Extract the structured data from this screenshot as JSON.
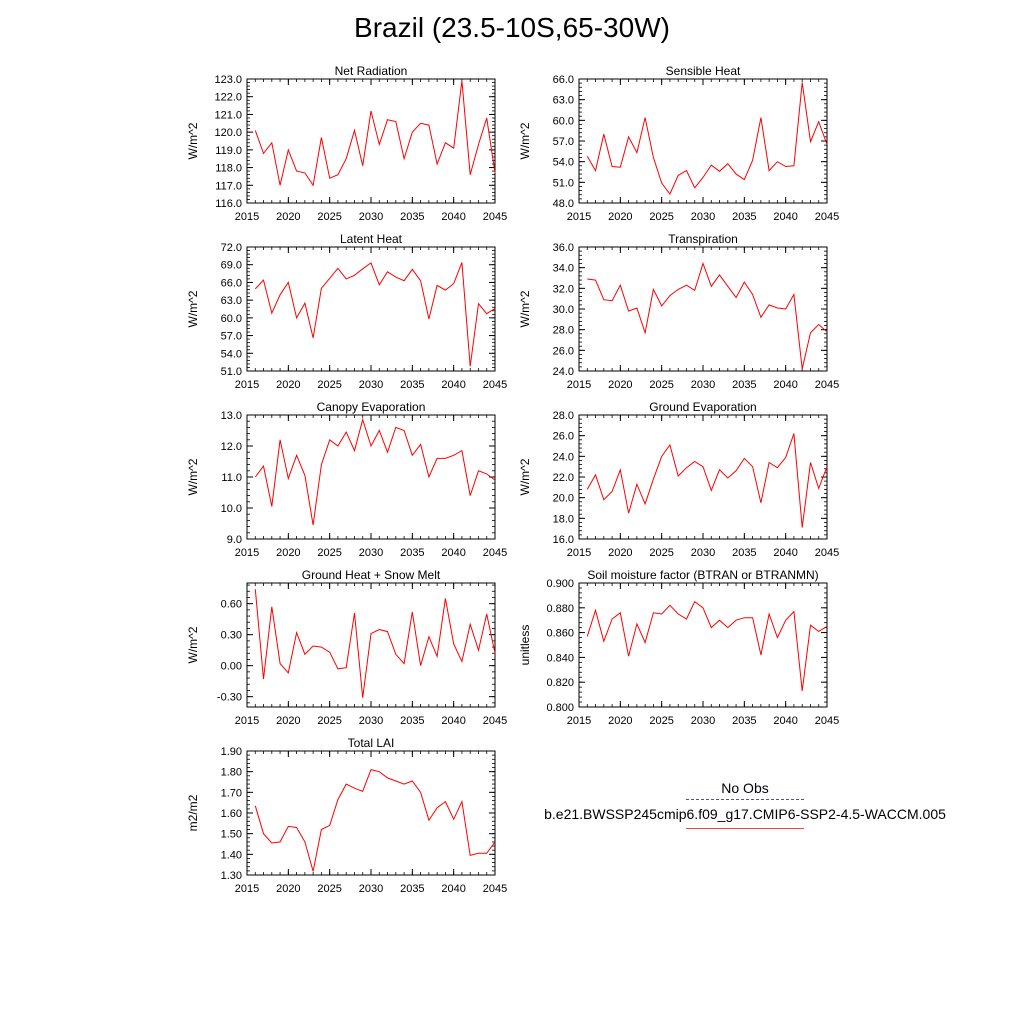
{
  "title": "Brazil (23.5-10S,65-30W)",
  "legend": {
    "obs_label": "No Obs",
    "case_label": "b.e21.BWSSP245cmip6.f09_g17.CMIP6-SSP2-4.5-WACCM.005",
    "obs_color": "#5050a0",
    "case_color": "#ff0000"
  },
  "chart_data": [
    {
      "type": "line",
      "title": "Net Radiation",
      "ylabel": "W/m^2",
      "xlim": [
        2015,
        2045
      ],
      "ylim": [
        116.0,
        123.0
      ],
      "xticks": [
        2015,
        2020,
        2025,
        2030,
        2035,
        2040,
        2045
      ],
      "yticks": [
        "116.0",
        "117.0",
        "118.0",
        "119.0",
        "120.0",
        "121.0",
        "122.0",
        "123.0"
      ],
      "x": [
        2016,
        2017,
        2018,
        2019,
        2020,
        2021,
        2022,
        2023,
        2024,
        2025,
        2026,
        2027,
        2028,
        2029,
        2030,
        2031,
        2032,
        2033,
        2034,
        2035,
        2036,
        2037,
        2038,
        2039,
        2040,
        2041,
        2042,
        2043,
        2044,
        2045
      ],
      "series": [
        {
          "values": [
            120.1,
            118.8,
            119.4,
            117.0,
            119.0,
            117.8,
            117.7,
            117.0,
            119.7,
            117.4,
            117.6,
            118.5,
            120.1,
            118.1,
            121.2,
            119.3,
            120.7,
            120.6,
            118.5,
            120.0,
            120.5,
            120.4,
            118.2,
            119.4,
            119.1,
            122.9,
            117.6,
            119.3,
            120.8,
            117.7
          ]
        }
      ]
    },
    {
      "type": "line",
      "title": "Sensible Heat",
      "ylabel": "W/m^2",
      "xlim": [
        2015,
        2045
      ],
      "ylim": [
        48.0,
        66.0
      ],
      "xticks": [
        2015,
        2020,
        2025,
        2030,
        2035,
        2040,
        2045
      ],
      "yticks": [
        "48.0",
        "51.0",
        "54.0",
        "57.0",
        "60.0",
        "63.0",
        "66.0"
      ],
      "x": [
        2016,
        2017,
        2018,
        2019,
        2020,
        2021,
        2022,
        2023,
        2024,
        2025,
        2026,
        2027,
        2028,
        2029,
        2030,
        2031,
        2032,
        2033,
        2034,
        2035,
        2036,
        2037,
        2038,
        2039,
        2040,
        2041,
        2042,
        2043,
        2044,
        2045
      ],
      "series": [
        {
          "values": [
            54.8,
            52.7,
            58.0,
            53.3,
            53.2,
            57.6,
            55.3,
            60.4,
            54.6,
            50.9,
            49.3,
            52.0,
            52.7,
            50.2,
            51.7,
            53.5,
            52.6,
            53.7,
            52.2,
            51.4,
            54.2,
            60.4,
            52.7,
            54.0,
            53.3,
            53.4,
            65.5,
            56.9,
            59.8,
            56.5
          ]
        }
      ]
    },
    {
      "type": "line",
      "title": "Latent Heat",
      "ylabel": "W/m^2",
      "xlim": [
        2015,
        2045
      ],
      "ylim": [
        51.0,
        72.0
      ],
      "xticks": [
        2015,
        2020,
        2025,
        2030,
        2035,
        2040,
        2045
      ],
      "yticks": [
        "51.0",
        "54.0",
        "57.0",
        "60.0",
        "63.0",
        "66.0",
        "69.0",
        "72.0"
      ],
      "x": [
        2016,
        2017,
        2018,
        2019,
        2020,
        2021,
        2022,
        2023,
        2024,
        2025,
        2026,
        2027,
        2028,
        2029,
        2030,
        2031,
        2032,
        2033,
        2034,
        2035,
        2036,
        2037,
        2038,
        2039,
        2040,
        2041,
        2042,
        2043,
        2044,
        2045
      ],
      "series": [
        {
          "values": [
            64.9,
            66.4,
            60.8,
            63.9,
            66.0,
            60.0,
            62.5,
            56.6,
            65.0,
            66.7,
            68.4,
            66.6,
            67.2,
            68.3,
            69.3,
            65.6,
            67.8,
            66.9,
            66.3,
            68.2,
            66.3,
            59.8,
            65.5,
            64.7,
            65.8,
            69.4,
            51.8,
            62.4,
            60.7,
            61.6
          ]
        }
      ]
    },
    {
      "type": "line",
      "title": "Transpiration",
      "ylabel": "W/m^2",
      "xlim": [
        2015,
        2045
      ],
      "ylim": [
        24.0,
        36.0
      ],
      "xticks": [
        2015,
        2020,
        2025,
        2030,
        2035,
        2040,
        2045
      ],
      "yticks": [
        "24.0",
        "26.0",
        "28.0",
        "30.0",
        "32.0",
        "34.0",
        "36.0"
      ],
      "x": [
        2016,
        2017,
        2018,
        2019,
        2020,
        2021,
        2022,
        2023,
        2024,
        2025,
        2026,
        2027,
        2028,
        2029,
        2030,
        2031,
        2032,
        2033,
        2034,
        2035,
        2036,
        2037,
        2038,
        2039,
        2040,
        2041,
        2042,
        2043,
        2044,
        2045
      ],
      "series": [
        {
          "values": [
            32.9,
            32.8,
            30.9,
            30.8,
            32.3,
            29.8,
            30.1,
            27.7,
            31.9,
            30.3,
            31.3,
            31.9,
            32.3,
            31.8,
            34.4,
            32.2,
            33.3,
            32.2,
            31.1,
            32.6,
            31.4,
            29.2,
            30.4,
            30.1,
            30.0,
            31.4,
            24.2,
            27.7,
            28.5,
            27.8
          ]
        }
      ]
    },
    {
      "type": "line",
      "title": "Canopy Evaporation",
      "ylabel": "W/m^2",
      "xlim": [
        2015,
        2045
      ],
      "ylim": [
        9.0,
        13.0
      ],
      "xticks": [
        2015,
        2020,
        2025,
        2030,
        2035,
        2040,
        2045
      ],
      "yticks": [
        "9.0",
        "10.0",
        "11.0",
        "12.0",
        "13.0"
      ],
      "x": [
        2016,
        2017,
        2018,
        2019,
        2020,
        2021,
        2022,
        2023,
        2024,
        2025,
        2026,
        2027,
        2028,
        2029,
        2030,
        2031,
        2032,
        2033,
        2034,
        2035,
        2036,
        2037,
        2038,
        2039,
        2040,
        2041,
        2042,
        2043,
        2044,
        2045
      ],
      "series": [
        {
          "values": [
            11.0,
            11.35,
            10.05,
            12.2,
            10.95,
            11.7,
            11.05,
            9.45,
            11.4,
            12.2,
            12.0,
            12.45,
            11.85,
            12.85,
            12.0,
            12.5,
            11.8,
            12.6,
            12.5,
            11.7,
            12.05,
            11.0,
            11.6,
            11.6,
            11.7,
            11.85,
            10.4,
            11.2,
            11.1,
            10.9
          ]
        }
      ]
    },
    {
      "type": "line",
      "title": "Ground Evaporation",
      "ylabel": "W/m^2",
      "xlim": [
        2015,
        2045
      ],
      "ylim": [
        16.0,
        28.0
      ],
      "xticks": [
        2015,
        2020,
        2025,
        2030,
        2035,
        2040,
        2045
      ],
      "yticks": [
        "16.0",
        "18.0",
        "20.0",
        "22.0",
        "24.0",
        "26.0",
        "28.0"
      ],
      "x": [
        2016,
        2017,
        2018,
        2019,
        2020,
        2021,
        2022,
        2023,
        2024,
        2025,
        2026,
        2027,
        2028,
        2029,
        2030,
        2031,
        2032,
        2033,
        2034,
        2035,
        2036,
        2037,
        2038,
        2039,
        2040,
        2041,
        2042,
        2043,
        2044,
        2045
      ],
      "series": [
        {
          "values": [
            20.8,
            22.2,
            19.8,
            20.6,
            22.7,
            18.5,
            21.3,
            19.4,
            21.8,
            24.0,
            25.1,
            22.1,
            22.9,
            23.5,
            23.0,
            20.7,
            22.7,
            21.9,
            22.6,
            23.8,
            23.0,
            19.5,
            23.4,
            22.9,
            23.9,
            26.2,
            17.1,
            23.4,
            20.9,
            23.0
          ]
        }
      ]
    },
    {
      "type": "line",
      "title": "Ground Heat + Snow Melt",
      "ylabel": "W/m^2",
      "xlim": [
        2015,
        2045
      ],
      "ylim": [
        -0.4,
        0.8
      ],
      "xticks": [
        2015,
        2020,
        2025,
        2030,
        2035,
        2040,
        2045
      ],
      "yticks": [
        "-0.30",
        "0.00",
        "0.30",
        "0.60"
      ],
      "ytick_values": [
        -0.3,
        0.0,
        0.3,
        0.6
      ],
      "x": [
        2016,
        2017,
        2018,
        2019,
        2020,
        2021,
        2022,
        2023,
        2024,
        2025,
        2026,
        2027,
        2028,
        2029,
        2030,
        2031,
        2032,
        2033,
        2034,
        2035,
        2036,
        2037,
        2038,
        2039,
        2040,
        2041,
        2042,
        2043,
        2044,
        2045
      ],
      "series": [
        {
          "values": [
            0.74,
            -0.13,
            0.57,
            0.02,
            -0.07,
            0.32,
            0.11,
            0.19,
            0.18,
            0.13,
            -0.03,
            -0.02,
            0.51,
            -0.31,
            0.31,
            0.35,
            0.33,
            0.11,
            0.02,
            0.52,
            0.0,
            0.28,
            0.09,
            0.65,
            0.21,
            0.04,
            0.4,
            0.15,
            0.5,
            0.12
          ]
        }
      ]
    },
    {
      "type": "line",
      "title": "Soil moisture factor (BTRAN or BTRANMN)",
      "ylabel": "unitless",
      "xlim": [
        2015,
        2045
      ],
      "ylim": [
        0.8,
        0.9
      ],
      "xticks": [
        2015,
        2020,
        2025,
        2030,
        2035,
        2040,
        2045
      ],
      "yticks": [
        "0.800",
        "0.820",
        "0.840",
        "0.860",
        "0.880",
        "0.900"
      ],
      "x": [
        2016,
        2017,
        2018,
        2019,
        2020,
        2021,
        2022,
        2023,
        2024,
        2025,
        2026,
        2027,
        2028,
        2029,
        2030,
        2031,
        2032,
        2033,
        2034,
        2035,
        2036,
        2037,
        2038,
        2039,
        2040,
        2041,
        2042,
        2043,
        2044,
        2045
      ],
      "series": [
        {
          "values": [
            0.857,
            0.878,
            0.853,
            0.871,
            0.876,
            0.841,
            0.867,
            0.852,
            0.876,
            0.875,
            0.882,
            0.875,
            0.871,
            0.885,
            0.88,
            0.864,
            0.87,
            0.864,
            0.87,
            0.872,
            0.872,
            0.842,
            0.875,
            0.856,
            0.87,
            0.877,
            0.813,
            0.866,
            0.861,
            0.865
          ]
        }
      ]
    },
    {
      "type": "line",
      "title": "Total LAI",
      "ylabel": "m2/m2",
      "xlim": [
        2015,
        2045
      ],
      "ylim": [
        1.3,
        1.9
      ],
      "xticks": [
        2015,
        2020,
        2025,
        2030,
        2035,
        2040,
        2045
      ],
      "yticks": [
        "1.30",
        "1.40",
        "1.50",
        "1.60",
        "1.70",
        "1.80",
        "1.90"
      ],
      "x": [
        2016,
        2017,
        2018,
        2019,
        2020,
        2021,
        2022,
        2023,
        2024,
        2025,
        2026,
        2027,
        2028,
        2029,
        2030,
        2031,
        2032,
        2033,
        2034,
        2035,
        2036,
        2037,
        2038,
        2039,
        2040,
        2041,
        2042,
        2043,
        2044,
        2045
      ],
      "series": [
        {
          "values": [
            1.635,
            1.5,
            1.455,
            1.46,
            1.535,
            1.53,
            1.46,
            1.318,
            1.52,
            1.54,
            1.665,
            1.74,
            1.72,
            1.705,
            1.81,
            1.8,
            1.77,
            1.755,
            1.74,
            1.755,
            1.7,
            1.565,
            1.625,
            1.655,
            1.57,
            1.655,
            1.395,
            1.405,
            1.405,
            1.46
          ]
        }
      ]
    }
  ]
}
